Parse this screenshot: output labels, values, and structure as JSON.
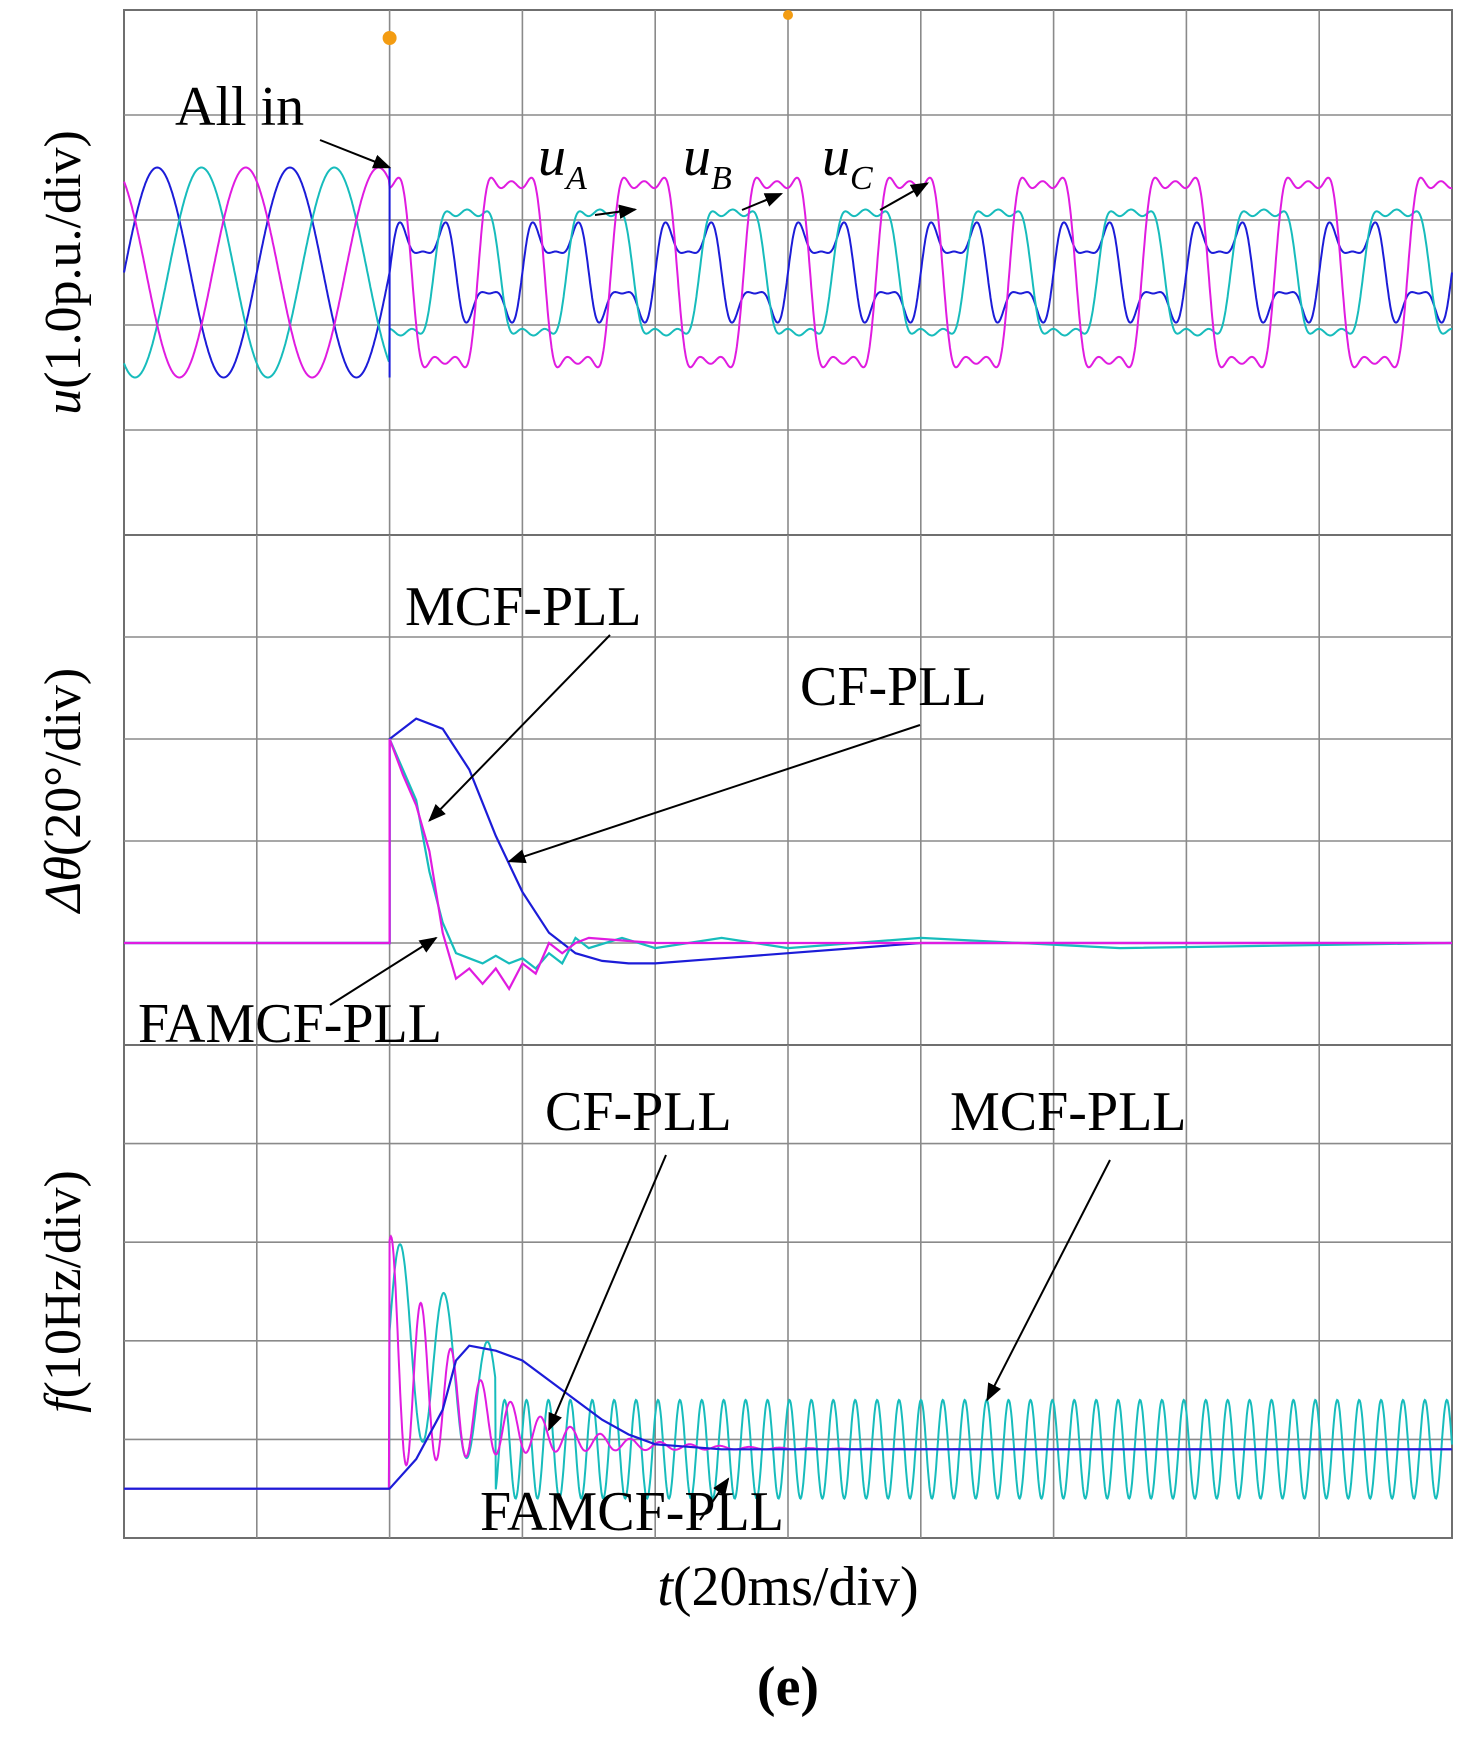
{
  "figure": {
    "caption": "(e)",
    "xlabel_var": "t",
    "xlabel_unit": "(20ms/div)"
  },
  "colors": {
    "phase_a": "#1c1cd8",
    "phase_b": "#17bcbc",
    "phase_c": "#e01ce0",
    "cf_pll": "#1c1cd8",
    "mcf_pll": "#17bcbc",
    "famcf_pll": "#e01ce0",
    "grid": "#8a8a8a",
    "trigger_marker": "#f39c12"
  },
  "chart_data": [
    {
      "type": "line",
      "panel": "voltage",
      "ylabel_var": "u",
      "ylabel_unit": "(1.0p.u./div)",
      "x_unit": "ms",
      "x_per_div": 20,
      "xlim": [
        0,
        200
      ],
      "y_per_div": 1.0,
      "ylim": [
        -2.5,
        2.5
      ],
      "event_time": 40,
      "annotations": [
        {
          "text": "All in",
          "points_to": [
            40,
            1.0
          ]
        },
        {
          "text": "u",
          "sub": "A",
          "points_to": [
            77,
            0.6
          ]
        },
        {
          "text": "u",
          "sub": "B",
          "points_to": [
            99,
            0.75
          ]
        },
        {
          "text": "u",
          "sub": "C",
          "points_to": [
            121,
            0.85
          ]
        }
      ],
      "series": [
        {
          "key": "uA",
          "color_key": "phase_a",
          "pre_amplitude": 1.0,
          "pre_phase_deg": 0,
          "post": {
            "fundamental": 0.35,
            "harmonics": [
              [
                3,
                0.25
              ],
              [
                5,
                0.1
              ]
            ]
          }
        },
        {
          "key": "uB",
          "color_key": "phase_b",
          "pre_amplitude": 1.0,
          "pre_phase_deg": -120,
          "post": {
            "fundamental": 0.7,
            "harmonics": [
              [
                3,
                0.18
              ],
              [
                5,
                0.08
              ]
            ]
          }
        },
        {
          "key": "uC",
          "color_key": "phase_c",
          "pre_amplitude": 1.0,
          "pre_phase_deg": 120,
          "post": {
            "fundamental": 1.05,
            "harmonics": [
              [
                3,
                0.3
              ],
              [
                5,
                0.12
              ]
            ]
          }
        }
      ]
    },
    {
      "type": "line",
      "panel": "phase_error",
      "ylabel_var": "Δθ",
      "ylabel_unit": "(20°/div)",
      "x_unit": "ms",
      "x_per_div": 20,
      "xlim": [
        0,
        200
      ],
      "y_per_div": 20,
      "ylim": [
        -20,
        80
      ],
      "annotations": [
        {
          "text": "MCF-PLL",
          "points_to": [
            46,
            24
          ]
        },
        {
          "text": "CF-PLL",
          "points_to": [
            58,
            16
          ]
        },
        {
          "text": "FAMCF-PLL",
          "points_to": [
            47,
            1
          ]
        }
      ],
      "series": [
        {
          "name": "CF-PLL",
          "color_key": "cf_pll",
          "x": [
            0,
            40,
            40,
            44,
            48,
            52,
            56,
            60,
            64,
            68,
            72,
            76,
            80,
            90,
            100,
            110,
            120,
            140,
            170,
            200
          ],
          "y": [
            0,
            0,
            40,
            44,
            42,
            34,
            21,
            10,
            2,
            -2,
            -3.5,
            -4,
            -4,
            -3,
            -2,
            -1,
            0,
            0,
            0,
            0
          ]
        },
        {
          "name": "MCF-PLL",
          "color_key": "mcf_pll",
          "x": [
            0,
            40,
            40,
            42,
            44,
            46,
            48,
            50,
            52,
            54,
            56,
            58,
            60,
            62,
            64,
            66,
            68,
            70,
            75,
            80,
            90,
            100,
            120,
            150,
            200
          ],
          "y": [
            0,
            0,
            40,
            34,
            28,
            14,
            4,
            -2,
            -3,
            -4,
            -2.5,
            -4,
            -3,
            -5,
            -2,
            -4,
            1,
            -1,
            1,
            -1,
            1,
            -1,
            1,
            -1,
            0
          ]
        },
        {
          "name": "FAMCF-PLL",
          "color_key": "famcf_pll",
          "x": [
            0,
            40,
            40,
            42,
            44,
            46,
            48,
            50,
            52,
            54,
            56,
            58,
            60,
            62,
            64,
            66,
            68,
            70,
            75,
            80,
            90,
            100,
            120,
            150,
            200
          ],
          "y": [
            0,
            0,
            40,
            33,
            27,
            18,
            2,
            -7,
            -5,
            -8,
            -5,
            -9,
            -4,
            -6,
            0,
            -2,
            0,
            1,
            0.5,
            0,
            0,
            0,
            0,
            0,
            0
          ]
        }
      ]
    },
    {
      "type": "line",
      "panel": "frequency",
      "ylabel_var": "f",
      "ylabel_unit": "(10Hz/div)",
      "x_unit": "ms",
      "x_per_div": 20,
      "xlim": [
        0,
        200
      ],
      "y_per_div": 10,
      "ylim": [
        -30,
        20
      ],
      "annotations": [
        {
          "text": "CF-PLL",
          "points_to": [
            64,
            -19
          ]
        },
        {
          "text": "MCF-PLL",
          "points_to": [
            130,
            -16
          ]
        },
        {
          "text": "FAMCF-PLL",
          "points_to": [
            91,
            -24
          ]
        }
      ],
      "series": [
        {
          "name": "CF-PLL",
          "color_key": "cf_pll",
          "x": [
            0,
            40,
            44,
            48,
            50,
            52,
            56,
            60,
            64,
            68,
            72,
            76,
            80,
            90,
            100,
            120,
            160,
            200
          ],
          "y": [
            -25,
            -25,
            -22,
            -17,
            -12,
            -10.5,
            -11,
            -12,
            -14,
            -16,
            -18,
            -19.5,
            -20.5,
            -21,
            -21,
            -21,
            -21,
            -21
          ]
        },
        {
          "name": "MCF-PLL",
          "color_key": "mcf_pll",
          "base": -21,
          "post_amplitude": 5,
          "period_ms": 3.3
        },
        {
          "name": "FAMCF-PLL",
          "color_key": "famcf_pll",
          "base": -21,
          "decay_ms": 12,
          "peak_amplitude": 12
        }
      ]
    }
  ]
}
